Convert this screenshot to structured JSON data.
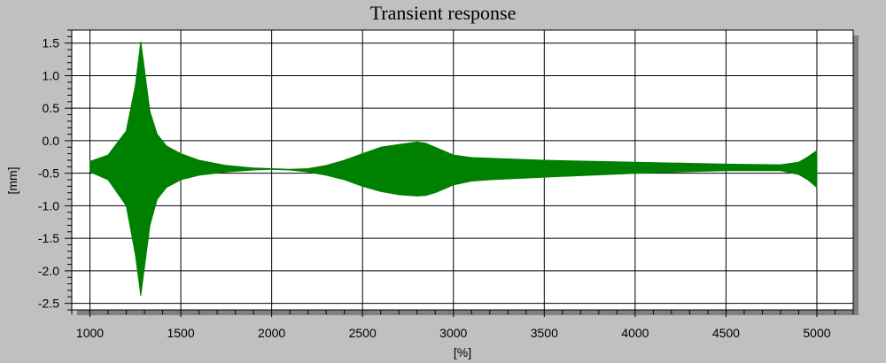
{
  "chart_data": {
    "type": "area",
    "title": "Transient response",
    "xlabel": "[%]",
    "ylabel": "[mm]",
    "xlim": [
      900,
      5200
    ],
    "ylim": [
      -2.6,
      1.7
    ],
    "xticks": [
      1000,
      1500,
      2000,
      2500,
      3000,
      3500,
      4000,
      4500,
      5000
    ],
    "yticks": [
      1.5,
      1.0,
      0.5,
      0.0,
      -0.5,
      -1.0,
      -1.5,
      -2.0,
      -2.5
    ],
    "ytick_labels": [
      "1.5",
      "1.0",
      "0.5",
      "0.0",
      "-0.5",
      "-1.0",
      "-1.5",
      "-2.0",
      "-2.5"
    ],
    "grid": true,
    "series": [
      {
        "color": "#008000",
        "x": [
          1000,
          1100,
          1200,
          1250,
          1280,
          1300,
          1330,
          1370,
          1420,
          1500,
          1600,
          1750,
          1900,
          2000,
          2100,
          2200,
          2300,
          2400,
          2500,
          2600,
          2700,
          2800,
          2850,
          2900,
          3000,
          3100,
          3200,
          3500,
          4000,
          4500,
          4800,
          4900,
          4950,
          5000
        ],
        "upper": [
          -0.32,
          -0.22,
          0.15,
          0.85,
          1.52,
          1.1,
          0.45,
          0.1,
          -0.08,
          -0.2,
          -0.3,
          -0.38,
          -0.42,
          -0.43,
          -0.44,
          -0.43,
          -0.38,
          -0.3,
          -0.2,
          -0.1,
          -0.06,
          -0.02,
          -0.04,
          -0.1,
          -0.22,
          -0.26,
          -0.27,
          -0.3,
          -0.33,
          -0.36,
          -0.37,
          -0.33,
          -0.25,
          -0.15
        ],
        "lower": [
          -0.48,
          -0.6,
          -1.0,
          -1.75,
          -2.38,
          -1.95,
          -1.3,
          -0.9,
          -0.72,
          -0.6,
          -0.53,
          -0.48,
          -0.45,
          -0.44,
          -0.45,
          -0.48,
          -0.53,
          -0.6,
          -0.7,
          -0.78,
          -0.83,
          -0.85,
          -0.84,
          -0.8,
          -0.68,
          -0.62,
          -0.6,
          -0.56,
          -0.5,
          -0.46,
          -0.46,
          -0.52,
          -0.6,
          -0.72
        ]
      }
    ]
  }
}
